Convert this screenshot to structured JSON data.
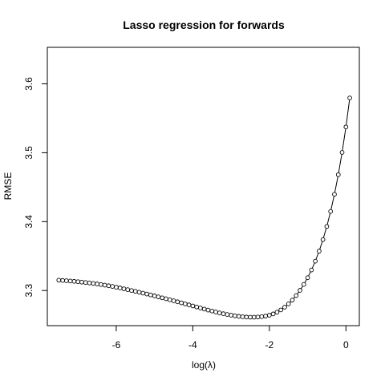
{
  "chart_data": {
    "type": "line",
    "title": "Lasso regression for forwards",
    "xlabel": "log(λ)",
    "ylabel": "RMSE",
    "xlim": [
      -7.8,
      0.35
    ],
    "ylim": [
      3.249,
      3.653
    ],
    "xticks": [
      -6,
      -4,
      -2,
      0
    ],
    "xtick_labels": [
      "-6",
      "-4",
      "-2",
      "0"
    ],
    "yticks": [
      3.3,
      3.4,
      3.5,
      3.6
    ],
    "ytick_labels": [
      "3.3",
      "3.4",
      "3.5",
      "3.6"
    ],
    "grid": false,
    "marker": "open-circle",
    "series": [
      {
        "name": "RMSE",
        "x": [
          -7.5,
          -7.4,
          -7.3,
          -7.2,
          -7.1,
          -7.0,
          -6.9,
          -6.8,
          -6.7,
          -6.6,
          -6.5,
          -6.4,
          -6.3,
          -6.2,
          -6.1,
          -6.0,
          -5.9,
          -5.8,
          -5.7,
          -5.6,
          -5.5,
          -5.4,
          -5.3,
          -5.2,
          -5.1,
          -5.0,
          -4.9,
          -4.8,
          -4.7,
          -4.6,
          -4.5,
          -4.4,
          -4.3,
          -4.2,
          -4.1,
          -4.0,
          -3.9,
          -3.8,
          -3.7,
          -3.6,
          -3.5,
          -3.4,
          -3.3,
          -3.2,
          -3.1,
          -3.0,
          -2.9,
          -2.8,
          -2.7,
          -2.6,
          -2.5,
          -2.4,
          -2.3,
          -2.2,
          -2.1,
          -2.0,
          -1.9,
          -1.8,
          -1.7,
          -1.6,
          -1.5,
          -1.4,
          -1.3,
          -1.2,
          -1.1,
          -1.0,
          -0.9,
          -0.8,
          -0.7,
          -0.6,
          -0.5,
          -0.4,
          -0.3,
          -0.2,
          -0.1,
          0.0,
          0.1
        ],
        "values": [
          3.315,
          3.3146,
          3.3142,
          3.3138,
          3.3133,
          3.3128,
          3.3122,
          3.3116,
          3.311,
          3.3103,
          3.3095,
          3.3087,
          3.3078,
          3.3069,
          3.3059,
          3.3048,
          3.3037,
          3.3025,
          3.3013,
          3.3,
          3.2988,
          3.2975,
          3.2962,
          3.2949,
          3.2936,
          3.2922,
          3.2908,
          3.2894,
          3.288,
          3.2866,
          3.2851,
          3.2836,
          3.2821,
          3.2806,
          3.2791,
          3.2776,
          3.2761,
          3.2746,
          3.2731,
          3.2716,
          3.2702,
          3.2688,
          3.2675,
          3.2663,
          3.2652,
          3.2642,
          3.2633,
          3.2625,
          3.2619,
          3.2615,
          3.2613,
          3.2613,
          3.2616,
          3.2621,
          3.2629,
          3.2641,
          3.266,
          3.2685,
          3.2718,
          3.2758,
          3.2806,
          3.2862,
          3.2927,
          3.3002,
          3.3088,
          3.3186,
          3.3298,
          3.3426,
          3.3572,
          3.3739,
          3.393,
          3.4148,
          3.4397,
          3.4681,
          3.5005,
          3.5374,
          3.5795
        ]
      }
    ]
  }
}
